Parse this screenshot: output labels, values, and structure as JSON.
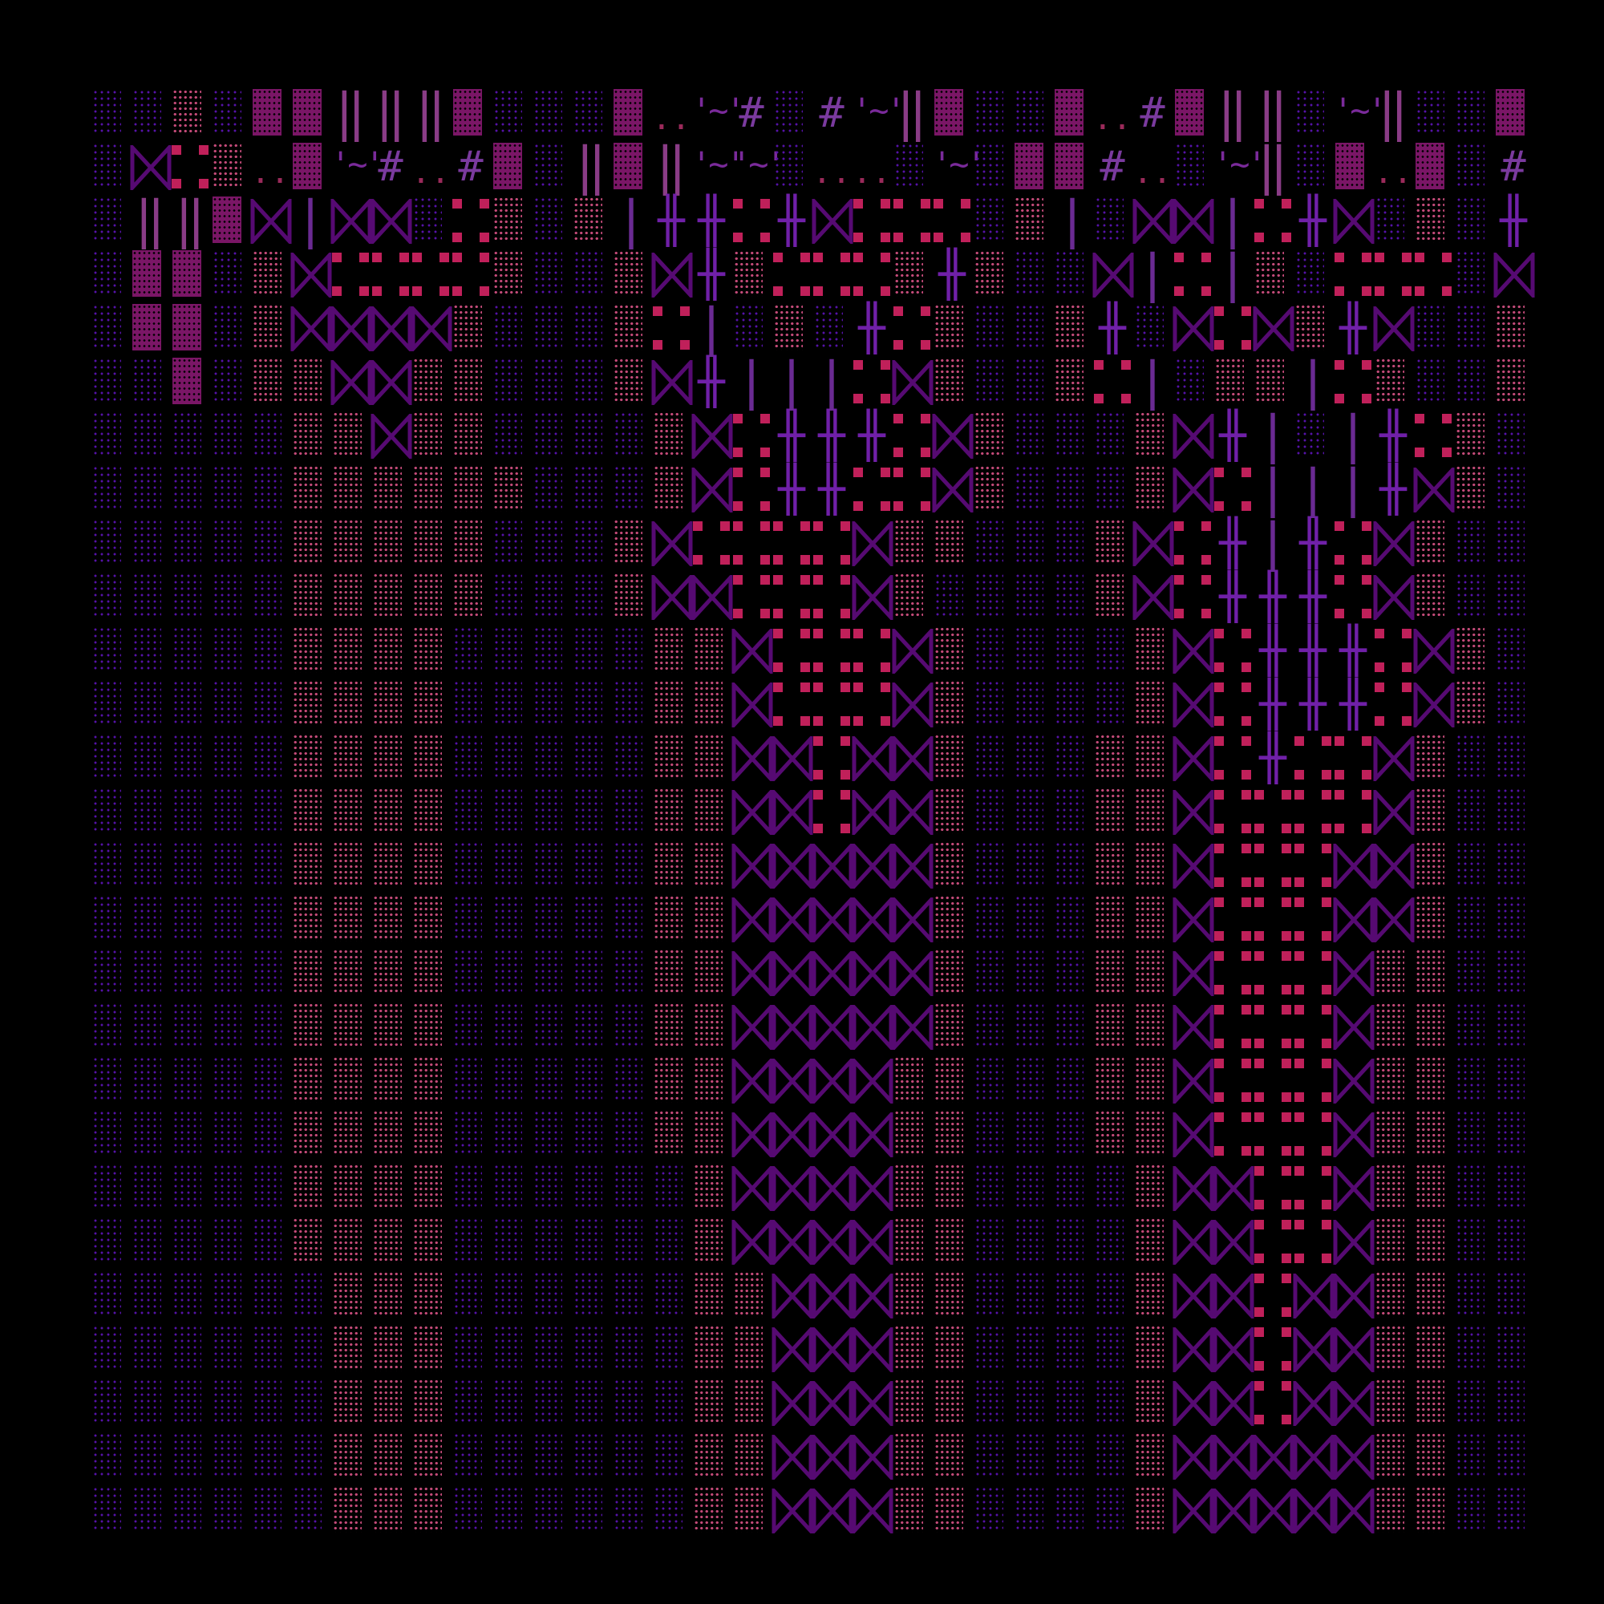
{
  "colors": {
    "background": "#000000",
    "dark_dots": "#5512a8",
    "pink_dots": "#c24a78",
    "magenta_block": "#7a1666",
    "bowtie": "#560a72",
    "red_blocks": "#c0205a"
  },
  "glyphs": {
    "d": "light-shade",
    "p": "medium-shade",
    "m": "dark-shade",
    "b": "⋈",
    "v": "‖",
    "l": "|",
    "x": "╫",
    "r": "red-dots",
    "t": "'~'",
    "h": "#",
    "o": "..",
    ".": "blank"
  },
  "grid": [
    "ddpdmmvvvmdddmothdhtvmddmohmvvdtvddm",
    "dbrpomthohmdvmvttdoodtdmmhodtvdmomdh",
    "dvvmblbbdrpdplxxrxbrrrdpldbblrxbdpdx",
    "dmmdpbrrrrpddpbxprrrpxpddblrlpdrrrdb",
    "dmmdpbbbbpdddprldpdxrpddpxdbrbpxbddp",
    "ddmdppbbppdddpbxlllrbpddprldpplrpddp",
    "dddddppbppddddpbrxxxrbpdddpbxldlxrpd",
    "dddddppppppdddpbrxxrrbpdddpbrlllxbpd",
    "dddddpppppdddpbrrrrbppdddpbrxlxrbpdd",
    "dddddpppppdddpbbrrrbpddddpbrxxxrbpdd",
    "dddddppppdddddppbrrrbpddddpbrxxxrbpd",
    "dddddppppdddddppbrrrbpddddpbrxxxrbpd",
    "dddddppppdddddppbbrbbpdddppbrxrrbpdd",
    "dddddppppdddddppbbrbbpdddppbrrrrbpdd",
    "dddddppppdddddppbbbbbpdddppbrrrbbpdd",
    "dddddppppdddddppbbbbbpdddppbrrrbbpdd",
    "dddddppppdddddppbbbbbpdddppbrrrbppdd",
    "dddddppppdddddppbbbbbpdddppbrrrbppdd",
    "dddddppppdddddppbbbbppdddppbrrrbppdd",
    "dddddppppdddddppbbbbppdddppbrrrbppdd",
    "dddddppppddddddpbbbbppddddpbbrrbppdd",
    "dddddppppddddddpbbbbppddddpbbrrbppdd",
    "ddddddpppddddddppbbbppddddpbbrbbppdd",
    "ddddddpppddddddppbbbppddddpbbrbbppdd",
    "ddddddpppddddddppbbbppddddpbbrbbppdd",
    "ddddddpppddddddppbbbppddddpbbbbbppdd",
    "ddddddpppddddddppbbbppddddpbbbbbppdd"
  ]
}
